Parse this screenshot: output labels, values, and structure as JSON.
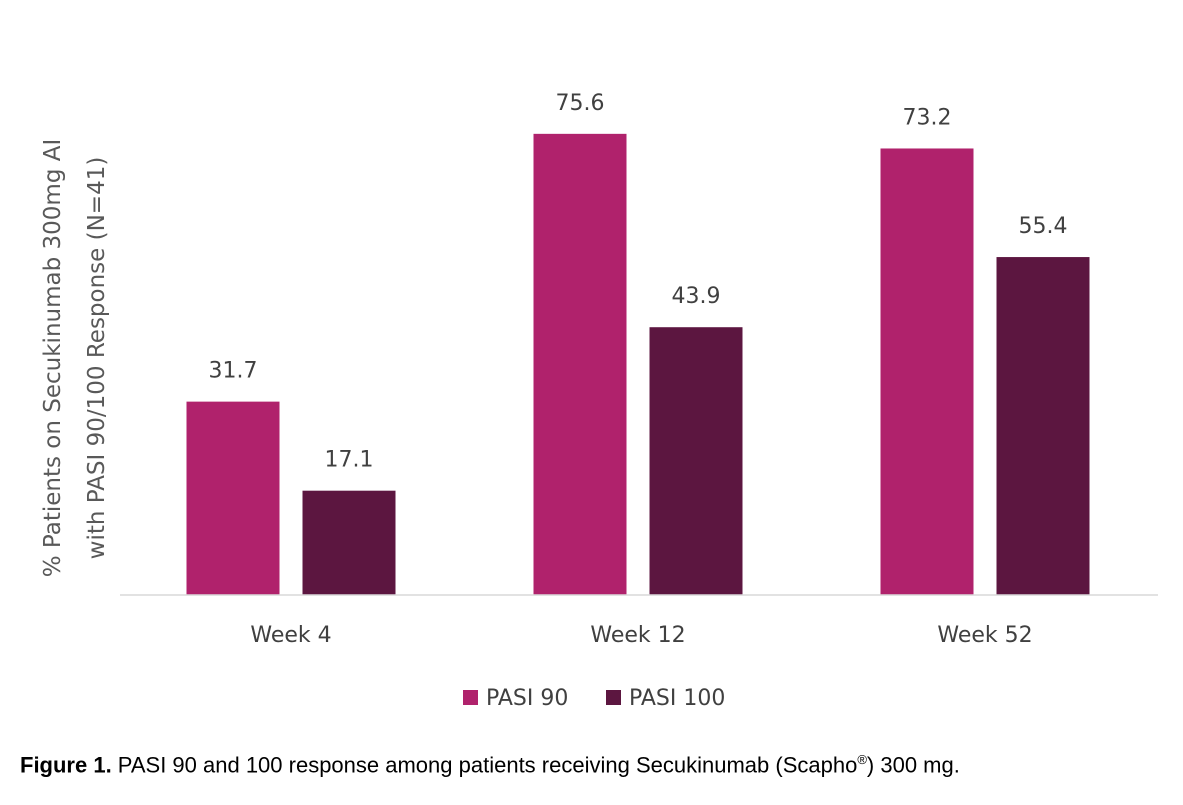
{
  "chart_data": {
    "type": "bar",
    "categories": [
      "Week 4",
      "Week 12",
      "Week 52"
    ],
    "series": [
      {
        "name": "PASI 90",
        "values": [
          31.7,
          75.6,
          73.2
        ],
        "color": "#b0226c"
      },
      {
        "name": "PASI 100",
        "values": [
          17.1,
          43.9,
          55.4
        ],
        "color": "#5c1640"
      }
    ],
    "ylabel_lines": [
      "% Patients on Secukinumab 300mg AI",
      "with PASI 90/100 Response (N=41)"
    ],
    "ylim": [
      0,
      80
    ],
    "grid": false,
    "legend": "bottom-center"
  },
  "caption": {
    "label": "Figure 1.",
    "text_before": " PASI 90 and 100 response among patients receiving Secukinumab (Scapho",
    "superscript": "®",
    "text_after": ") 300 mg."
  }
}
